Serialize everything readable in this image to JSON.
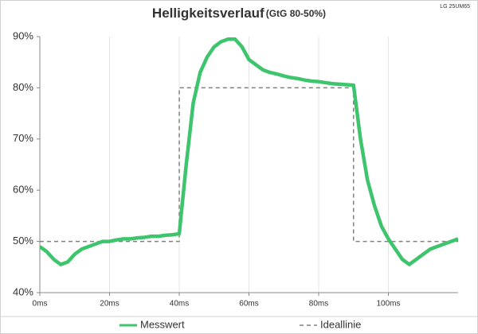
{
  "chart_data": {
    "type": "line",
    "title": "Helligkeitsverlauf",
    "subtitle": "(GtG 80-50%)",
    "annotation": "LG 25UM65",
    "xlim": [
      0,
      120
    ],
    "xticks": [
      {
        "value": 0,
        "label": "0ms"
      },
      {
        "value": 20,
        "label": "20ms"
      },
      {
        "value": 40,
        "label": "40ms"
      },
      {
        "value": 60,
        "label": "60ms"
      },
      {
        "value": 80,
        "label": "80ms"
      },
      {
        "value": 100,
        "label": "100ms"
      }
    ],
    "ylim": [
      40,
      90
    ],
    "yticks": [
      {
        "value": 40,
        "label": "40%"
      },
      {
        "value": 50,
        "label": "50%"
      },
      {
        "value": 60,
        "label": "60%"
      },
      {
        "value": 70,
        "label": "70%"
      },
      {
        "value": 80,
        "label": "80%"
      },
      {
        "value": 90,
        "label": "90%"
      }
    ],
    "grid": "x",
    "legend": "bottom",
    "series": [
      {
        "name": "Messwert",
        "color": "#3dc46c",
        "style": "solid",
        "x": [
          0,
          2,
          4,
          6,
          8,
          10,
          12,
          14,
          16,
          18,
          20,
          22,
          24,
          26,
          28,
          30,
          32,
          34,
          36,
          38,
          40,
          42,
          44,
          46,
          48,
          50,
          52,
          54,
          56,
          58,
          60,
          62,
          64,
          66,
          68,
          70,
          72,
          74,
          76,
          78,
          80,
          82,
          84,
          86,
          88,
          90,
          92,
          94,
          96,
          98,
          100,
          102,
          104,
          106,
          108,
          110,
          112,
          114,
          116,
          118,
          120
        ],
        "values": [
          49,
          48,
          46.5,
          45.5,
          46,
          47.5,
          48.5,
          49,
          49.5,
          50,
          50,
          50.3,
          50.5,
          50.5,
          50.7,
          50.8,
          51,
          51,
          51.2,
          51.3,
          51.5,
          65,
          77,
          83,
          86,
          88,
          89,
          89.5,
          89.5,
          88,
          85.5,
          84.5,
          83.5,
          83,
          82.7,
          82.3,
          82,
          81.8,
          81.5,
          81.3,
          81.2,
          81,
          80.8,
          80.7,
          80.6,
          80.5,
          70,
          62,
          57,
          53,
          50.5,
          48.5,
          46.5,
          45.5,
          46.5,
          47.5,
          48.5,
          49,
          49.5,
          50,
          50.5
        ]
      },
      {
        "name": "Ideallinie",
        "color": "#808080",
        "style": "dashed",
        "x": [
          0,
          40,
          40,
          90,
          90,
          120
        ],
        "values": [
          50,
          50,
          80,
          80,
          50,
          50
        ]
      }
    ]
  }
}
